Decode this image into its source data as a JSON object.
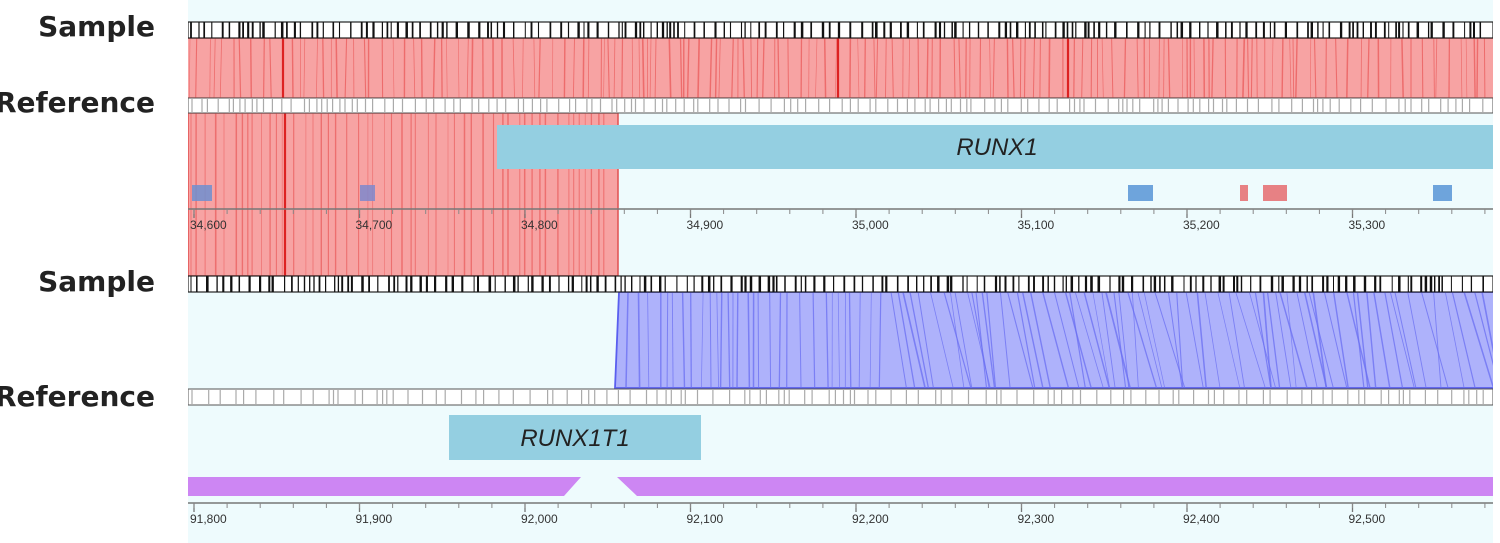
{
  "labels": {
    "sample_top": "Sample",
    "reference_top": "Reference",
    "sample_bottom": "Sample",
    "reference_bottom": "Reference"
  },
  "colors": {
    "background": "#eefbfd",
    "red_fill": "#f7a3a3",
    "red_line": "#ea4f4f",
    "blue_fill": "#aeb2fb",
    "blue_line": "#6a6ff2",
    "gene_box": "#94cfe1",
    "purple": "#cd86f3",
    "exon_blue": "#6ea4dc",
    "exon_red": "#e78184"
  },
  "top_panel": {
    "gene": "RUNX1",
    "ticks": [
      "34,600",
      "34,700",
      "34,800",
      "34,900",
      "35,000",
      "35,100",
      "35,200",
      "35,300"
    ]
  },
  "bottom_panel": {
    "gene": "RUNX1T1",
    "ticks": [
      "91,800",
      "91,900",
      "92,000",
      "92,100",
      "92,200",
      "92,300",
      "92,400",
      "92,500"
    ]
  }
}
